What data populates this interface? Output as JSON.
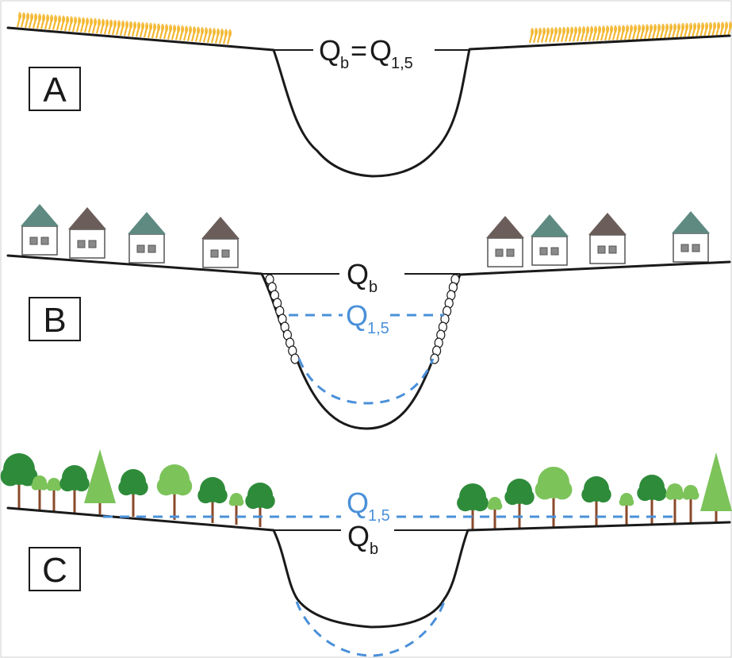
{
  "panels": [
    {
      "letter": "A",
      "labels": {
        "qb_main": "Q",
        "qb_sub": "b",
        "eq": "=",
        "q15_main": "Q",
        "q15_sub": "1,5"
      }
    },
    {
      "letter": "B",
      "labels": {
        "qb_main": "Q",
        "qb_sub": "b",
        "q15_main": "Q",
        "q15_sub": "1,5"
      }
    },
    {
      "letter": "C",
      "labels": {
        "q15_main": "Q",
        "q15_sub": "1,5",
        "qb_main": "Q",
        "qb_sub": "b"
      }
    }
  ],
  "colors": {
    "outline": "#1a1a1a",
    "flood_line": "#4a90d9",
    "crop": "#f2b730",
    "house_roof_dark": "#6b5e5a",
    "house_roof_teal": "#5f8a82",
    "tree_dark": "#2e8b3a",
    "tree_light": "#7cc35a",
    "trunk": "#8a4a2a"
  }
}
